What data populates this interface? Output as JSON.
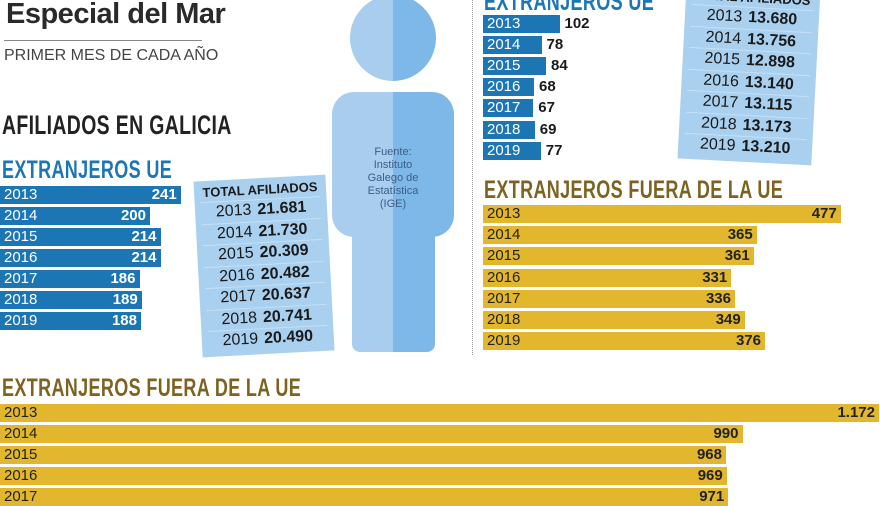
{
  "header": {
    "title": "Especial del Mar",
    "subtitle": "PRIMER MES DE CADA AÑO",
    "region": "AFILIADOS EN GALICIA"
  },
  "source": [
    "Fuente:",
    "Instituto",
    "Galego de",
    "Estatística",
    "(IGE)"
  ],
  "colors": {
    "eu": "#1d76b4",
    "non_eu": "#e2b72e",
    "total_box": "#a9d0ef",
    "figure_light": "#a8cdee",
    "figure_dark": "#7db8e8"
  },
  "chart_data": [
    {
      "type": "bar",
      "orientation": "horizontal",
      "title": "EXTRANJEROS UE",
      "categories": [
        "2013",
        "2014",
        "2015",
        "2016",
        "2017",
        "2018",
        "2019"
      ],
      "values": [
        241,
        200,
        214,
        214,
        186,
        189,
        188
      ]
    },
    {
      "type": "table",
      "title": "TOTAL AFILIADOS",
      "categories": [
        "2013",
        "2014",
        "2015",
        "2016",
        "2017",
        "2018",
        "2019"
      ],
      "values": [
        "21.681",
        "21.730",
        "20.309",
        "20.482",
        "20.637",
        "20.741",
        "20.490"
      ]
    },
    {
      "type": "bar",
      "orientation": "horizontal",
      "title": "EXTRANJEROS UE",
      "categories": [
        "2013",
        "2014",
        "2015",
        "2016",
        "2017",
        "2018",
        "2019"
      ],
      "values": [
        102,
        78,
        84,
        68,
        67,
        69,
        77
      ]
    },
    {
      "type": "table",
      "title": "TOTAL AFILIADOS",
      "categories": [
        "2013",
        "2014",
        "2015",
        "2016",
        "2017",
        "2018",
        "2019"
      ],
      "values": [
        "13.680",
        "13.756",
        "12.898",
        "13.140",
        "13.115",
        "13.173",
        "13.210"
      ]
    },
    {
      "type": "bar",
      "orientation": "horizontal",
      "title": "EXTRANJEROS FUERA DE LA UE",
      "categories": [
        "2013",
        "2014",
        "2015",
        "2016",
        "2017",
        "2018",
        "2019"
      ],
      "values": [
        477,
        365,
        361,
        331,
        336,
        349,
        376
      ]
    },
    {
      "type": "bar",
      "orientation": "horizontal",
      "title": "EXTRANJEROS FUERA DE LA UE",
      "categories": [
        "2013",
        "2014",
        "2015",
        "2016",
        "2017"
      ],
      "values": [
        1172,
        990,
        968,
        969,
        971
      ],
      "value_labels": [
        "1.172",
        "990",
        "968",
        "969",
        "971"
      ]
    }
  ]
}
